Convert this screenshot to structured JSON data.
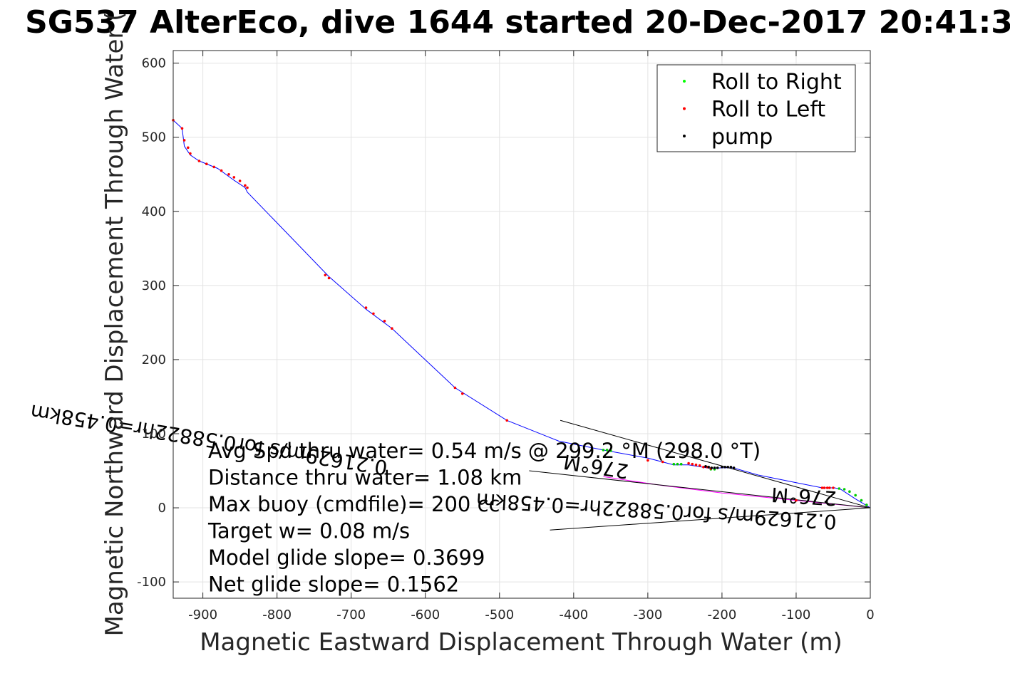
{
  "chart_data": {
    "type": "line",
    "title": "SG537 AlterEco, dive 1644 started 20-Dec-2017 20:41:3",
    "xlabel": "Magnetic Eastward Displacement Through Water (m)",
    "ylabel": "Magnetic Northward Displacement Through Water (",
    "xlim": [
      -940,
      0
    ],
    "ylim": [
      -122,
      617
    ],
    "xticks": [
      -900,
      -800,
      -700,
      -600,
      -500,
      -400,
      -300,
      -200,
      -100,
      0
    ],
    "yticks": [
      -100,
      0,
      100,
      200,
      300,
      400,
      500,
      600
    ],
    "grid": true,
    "legend_position": "top-right",
    "legend": [
      {
        "label": "Roll to Right",
        "color": "#00ff00"
      },
      {
        "label": "Roll to Left",
        "color": "#ff0000"
      },
      {
        "label": "pump",
        "color": "#000000"
      }
    ],
    "series": [
      {
        "color": "#0000ff",
        "x": [
          0,
          -20,
          -40,
          -48,
          -55,
          -65,
          -100,
          -150,
          -185,
          -200,
          -215,
          -245,
          -265,
          -300,
          -360,
          -420,
          -490,
          -560,
          -645,
          -680,
          -730,
          -840,
          -843,
          -858,
          -880,
          -905,
          -917,
          -925,
          -928,
          -940
        ],
        "y": [
          0,
          12,
          25,
          27,
          27,
          27,
          34,
          44,
          54,
          54,
          53,
          58,
          58,
          67,
          78,
          90,
          118,
          162,
          242,
          268,
          312,
          426,
          432,
          442,
          458,
          468,
          476,
          488,
          512,
          523
        ]
      },
      {
        "color": "#ff00ff",
        "x": [
          0,
          -100,
          -200,
          -280,
          -360
        ],
        "y": [
          0,
          10,
          20,
          30,
          42
        ]
      }
    ],
    "roll_left_points": {
      "x": [
        -940,
        -928,
        -925,
        -920,
        -917,
        -905,
        -895,
        -885,
        -875,
        -865,
        -858,
        -850,
        -843,
        -840,
        -735,
        -730,
        -680,
        -670,
        -655,
        -645,
        -560,
        -550,
        -490,
        -300,
        -280,
        -245,
        -240,
        -235,
        -230,
        -225,
        -220,
        -215,
        -100,
        -65,
        -62,
        -58,
        -55,
        -50
      ],
      "y": [
        523,
        512,
        496,
        486,
        478,
        468,
        464,
        460,
        455,
        450,
        446,
        441,
        435,
        432,
        314,
        310,
        270,
        262,
        252,
        242,
        162,
        154,
        118,
        64,
        62,
        60,
        59,
        58,
        57,
        55,
        55,
        53,
        10,
        27,
        27,
        27,
        27,
        27
      ]
    },
    "roll_right_points": {
      "x": [
        -360,
        -355,
        -350,
        -265,
        -260,
        -255,
        -215,
        -210,
        -42,
        -35,
        -28,
        -20,
        -12,
        -5
      ],
      "y": [
        78,
        78,
        77,
        59,
        59,
        59,
        52,
        52,
        26,
        25,
        22,
        17,
        10,
        4
      ]
    },
    "pump_points": {
      "x": [
        -222,
        -218,
        -214,
        -210,
        -206,
        -200,
        -196,
        -192,
        -188,
        -184,
        -60
      ],
      "y": [
        56,
        55,
        54,
        54,
        54,
        55,
        55,
        55,
        55,
        54,
        8
      ]
    },
    "current_lines": [
      {
        "x": [
          0,
          -418
        ],
        "y": [
          0,
          118
        ]
      },
      {
        "x": [
          0,
          -460
        ],
        "y": [
          0,
          50
        ]
      },
      {
        "x": [
          0,
          -432
        ],
        "y": [
          0,
          -30
        ]
      }
    ],
    "current_labels": [
      {
        "text": "0.21629m/s for0.58822hr=0.458km",
        "rotation": -176.5,
        "anchor_x": -45,
        "anchor_y": -10
      },
      {
        "text": "276°M",
        "rotation": -176.5,
        "anchor_x": -45,
        "anchor_y": 22
      },
      {
        "text": "276°M",
        "rotation": -171,
        "anchor_x": -325,
        "anchor_y": 58
      },
      {
        "text": "0.21629m/s for0.58822hr=0.458km",
        "rotation": -171,
        "anchor_x": -650,
        "anchor_y": 63
      }
    ],
    "stats": [
      "Avg Spd thru water=  0.54 m/s @ 299.2 °M (298.0 °T)",
      "Distance thru water=  1.08 km",
      "Max buoy (cmdfile)= 200 cc",
      "Target w= 0.08 m/s",
      "Model glide slope= 0.3699",
      "Net glide slope= 0.1562"
    ]
  }
}
